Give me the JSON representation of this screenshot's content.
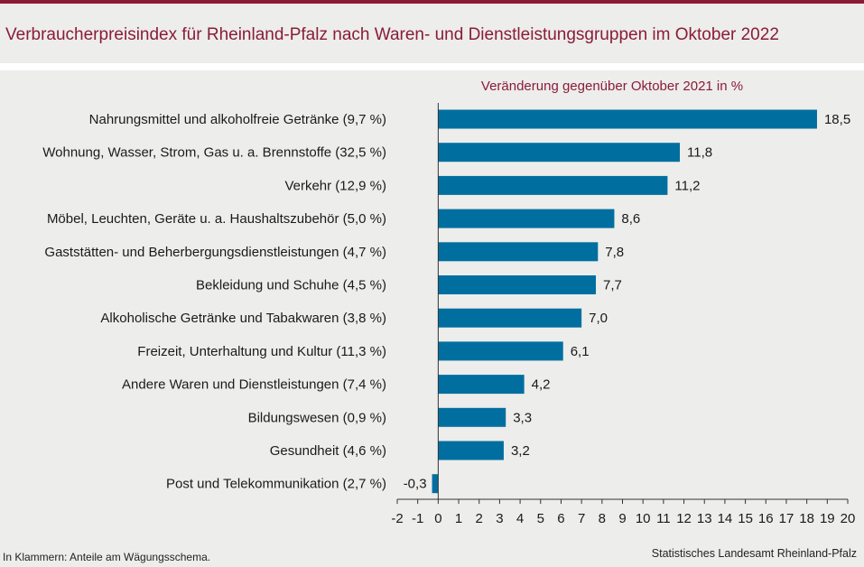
{
  "chart_data": {
    "type": "bar",
    "orientation": "horizontal",
    "title": "Verbraucherpreisindex für Rheinland-Pfalz nach Waren- und Dienstleistungsgruppen im Oktober 2022",
    "subtitle": "Veränderung gegenüber Oktober 2021 in %",
    "categories": [
      "Nahrungsmittel und alkoholfreie Getränke (9,7 %)",
      "Wohnung, Wasser, Strom, Gas u. a. Brennstoffe (32,5 %)",
      "Verkehr (12,9 %)",
      "Möbel, Leuchten, Geräte u. a. Haushaltszubehör  (5,0 %)",
      "Gaststätten- und Beherbergungsdienstleistungen (4,7 %)",
      "Bekleidung und Schuhe (4,5 %)",
      "Alkoholische Getränke und Tabakwaren (3,8 %)",
      "Freizeit, Unterhaltung und Kultur (11,3 %)",
      "Andere Waren und Dienstleistungen (7,4 %)",
      "Bildungswesen (0,9 %)",
      "Gesundheit (4,6 %)",
      "Post und Telekommunikation (2,7 %)"
    ],
    "values": [
      18.5,
      11.8,
      11.2,
      8.6,
      7.8,
      7.7,
      7.0,
      6.1,
      4.2,
      3.3,
      3.2,
      -0.3
    ],
    "value_labels": [
      "18,5",
      "11,8",
      "11,2",
      "8,6",
      "7,8",
      "7,7",
      "7,0",
      "6,1",
      "4,2",
      "3,3",
      "3,2",
      "-0,3"
    ],
    "xlim": [
      -2,
      20
    ],
    "xticks": [
      -2,
      -1,
      0,
      1,
      2,
      3,
      4,
      5,
      6,
      7,
      8,
      9,
      10,
      11,
      12,
      13,
      14,
      15,
      16,
      17,
      18,
      19,
      20
    ],
    "xlabel": "",
    "ylabel": "",
    "grid": false,
    "bar_color": "#006fa0"
  },
  "colors": {
    "accent": "#8a1c37",
    "bar": "#006fa0"
  },
  "footer": {
    "note": "In Klammern: Anteile am Wägungsschema.",
    "source": "Statistisches Landesamt Rheinland-Pfalz"
  }
}
